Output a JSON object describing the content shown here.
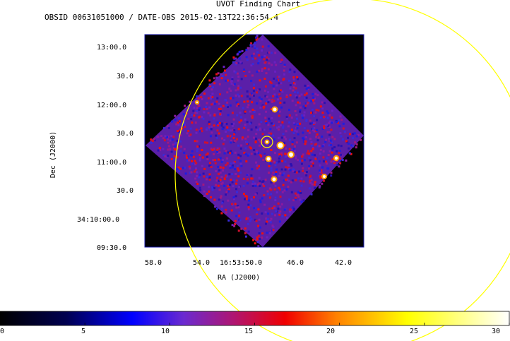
{
  "chart": {
    "title": "UVOT Finding Chart",
    "subtitle": "OBSID 00631051000 / DATE-OBS 2015-02-13T22:36:54.4",
    "xlabel": "RA (J2000)",
    "ylabel": "Dec (J2000)",
    "dec_ticks": [
      "13:00.0",
      "30.0",
      "12:00.0",
      "30.0",
      "11:00.0",
      "30.0",
      "34:10:00.0",
      "09:30.0"
    ],
    "ra_ticks": [
      "58.0",
      "54.0",
      "16:53:50.0",
      "46.0",
      "42.0"
    ],
    "colorbar_ticks": [
      "0",
      "5",
      "10",
      "15",
      "20",
      "25",
      "30"
    ]
  },
  "chart_data": {
    "type": "heatmap",
    "title": "UVOT Finding Chart",
    "subtitle": "OBSID 00631051000 / DATE-OBS 2015-02-13T22:36:54.4",
    "xlabel": "RA (J2000)",
    "ylabel": "Dec (J2000)",
    "x_ticks": [
      "58.0",
      "54.0",
      "16:53:50.0",
      "46.0",
      "42.0"
    ],
    "y_ticks": [
      "13:00.0",
      "30.0",
      "12:00.0",
      "30.0",
      "11:00.0",
      "30.0",
      "34:10:00.0",
      "09:30.0"
    ],
    "colorbar": {
      "min": 0,
      "max": 30,
      "ticks": [
        0,
        5,
        10,
        15,
        20,
        25,
        30
      ],
      "colormap": "black-blue-red-yellow-white"
    },
    "colors": {
      "background": "#000000",
      "frame": "#1a1ab0",
      "region_circle": "#ffff00"
    }
  }
}
